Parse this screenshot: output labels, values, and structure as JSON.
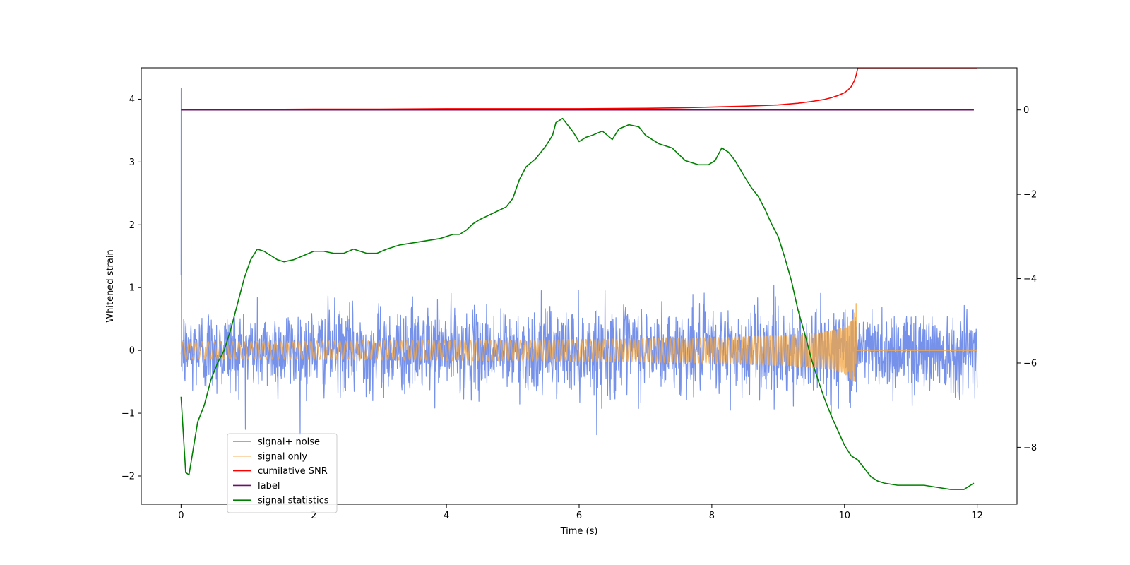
{
  "chart_data": {
    "type": "line",
    "title": "",
    "xlabel": "Time (s)",
    "ylabel": "Whitened strain",
    "y2label": "",
    "xlim": [
      -0.6,
      12.6
    ],
    "ylim": [
      -2.45,
      4.5
    ],
    "y2lim": [
      -9.35,
      1.0
    ],
    "xticks": [
      0,
      2,
      4,
      6,
      8,
      10,
      12
    ],
    "xtick_labels": [
      "0",
      "2",
      "4",
      "6",
      "8",
      "10",
      "12"
    ],
    "yticks": [
      -2,
      -1,
      0,
      1,
      2,
      3,
      4
    ],
    "ytick_labels": [
      "−2",
      "−1",
      "0",
      "1",
      "2",
      "3",
      "4"
    ],
    "y2ticks": [
      0,
      -2,
      -4,
      -6,
      -8
    ],
    "y2tick_labels": [
      "0",
      "−2",
      "−4",
      "−6",
      "−8"
    ],
    "grid": false,
    "legend_position": "lower-left",
    "series": [
      {
        "name": "signal+ noise",
        "color": "#6e8be8",
        "axis": "left",
        "kind": "noise",
        "x_range": [
          0,
          12
        ],
        "noise_std": 0.33,
        "spike": {
          "x": 0.0,
          "y": 4.17
        },
        "chirp_end_x": 10.18
      },
      {
        "name": "signal only",
        "color": "#f5a742",
        "axis": "left",
        "kind": "chirp",
        "x_range": [
          0,
          12
        ],
        "chirp_end_x": 10.18,
        "max_amplitude": 0.75
      },
      {
        "name": "cumilative SNR",
        "color": "#ff0000",
        "axis": "right",
        "x": [
          0,
          1,
          2,
          3,
          4,
          5,
          6,
          7,
          7.5,
          8,
          8.5,
          9,
          9.3,
          9.5,
          9.7,
          9.8,
          9.9,
          10.0,
          10.05,
          10.1,
          10.15,
          10.18,
          10.2,
          12
        ],
        "values": [
          0.0,
          0.01,
          0.02,
          0.02,
          0.03,
          0.03,
          0.03,
          0.04,
          0.05,
          0.07,
          0.09,
          0.12,
          0.16,
          0.2,
          0.25,
          0.29,
          0.34,
          0.41,
          0.47,
          0.55,
          0.7,
          0.85,
          1.0,
          1.0
        ]
      },
      {
        "name": "label",
        "color": "#6a0f6a",
        "axis": "right",
        "x": [
          0,
          11.95
        ],
        "values": [
          0.0,
          0.0
        ]
      },
      {
        "name": "signal statistics",
        "color": "#008000",
        "axis": "right",
        "x": [
          0,
          0.07,
          0.12,
          0.25,
          0.35,
          0.45,
          0.55,
          0.65,
          0.75,
          0.85,
          0.95,
          1.05,
          1.15,
          1.25,
          1.35,
          1.45,
          1.55,
          1.7,
          1.85,
          2.0,
          2.15,
          2.3,
          2.45,
          2.6,
          2.7,
          2.8,
          2.95,
          3.1,
          3.3,
          3.5,
          3.7,
          3.9,
          4.1,
          4.2,
          4.3,
          4.4,
          4.5,
          4.7,
          4.9,
          5.0,
          5.1,
          5.2,
          5.35,
          5.5,
          5.6,
          5.65,
          5.75,
          5.9,
          6.0,
          6.1,
          6.2,
          6.35,
          6.5,
          6.6,
          6.75,
          6.9,
          7.0,
          7.2,
          7.4,
          7.5,
          7.6,
          7.8,
          7.95,
          8.05,
          8.15,
          8.25,
          8.35,
          8.5,
          8.6,
          8.7,
          8.8,
          8.9,
          9.0,
          9.1,
          9.2,
          9.3,
          9.4,
          9.5,
          9.6,
          9.7,
          9.8,
          9.9,
          10.0,
          10.1,
          10.2,
          10.3,
          10.4,
          10.5,
          10.6,
          10.8,
          11.0,
          11.2,
          11.4,
          11.6,
          11.8,
          11.9,
          11.95
        ],
        "values": [
          -6.8,
          -8.6,
          -8.65,
          -7.4,
          -7.0,
          -6.4,
          -6.0,
          -5.7,
          -5.2,
          -4.6,
          -4.0,
          -3.55,
          -3.3,
          -3.35,
          -3.45,
          -3.55,
          -3.6,
          -3.55,
          -3.45,
          -3.35,
          -3.35,
          -3.4,
          -3.4,
          -3.3,
          -3.35,
          -3.4,
          -3.4,
          -3.3,
          -3.2,
          -3.15,
          -3.1,
          -3.05,
          -2.95,
          -2.95,
          -2.85,
          -2.7,
          -2.6,
          -2.45,
          -2.3,
          -2.1,
          -1.65,
          -1.35,
          -1.15,
          -0.85,
          -0.6,
          -0.3,
          -0.2,
          -0.5,
          -0.75,
          -0.65,
          -0.6,
          -0.5,
          -0.7,
          -0.45,
          -0.35,
          -0.4,
          -0.6,
          -0.8,
          -0.9,
          -1.05,
          -1.2,
          -1.3,
          -1.3,
          -1.2,
          -0.9,
          -1.0,
          -1.2,
          -1.6,
          -1.85,
          -2.05,
          -2.35,
          -2.7,
          -3.0,
          -3.5,
          -4.05,
          -4.75,
          -5.3,
          -5.9,
          -6.4,
          -6.85,
          -7.25,
          -7.6,
          -7.95,
          -8.2,
          -8.3,
          -8.5,
          -8.7,
          -8.8,
          -8.85,
          -8.9,
          -8.9,
          -8.9,
          -8.95,
          -9.0,
          -9.0,
          -8.9,
          -8.85
        ]
      }
    ]
  }
}
